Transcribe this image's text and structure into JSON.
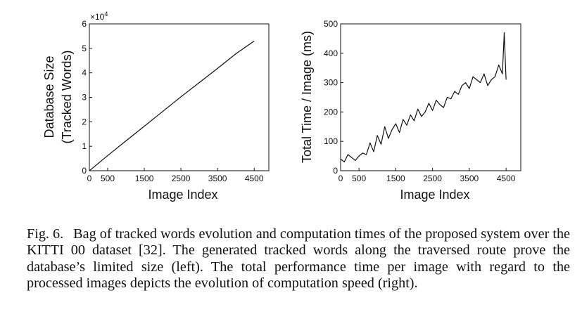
{
  "chart_data": [
    {
      "type": "line",
      "ylabel": "Database Size",
      "ylabel2": "(Tracked Words)",
      "xlabel": "Image Index",
      "xlim": [
        0,
        4900
      ],
      "ylim": [
        0,
        6
      ],
      "xticks": [
        0,
        500,
        1500,
        2500,
        3500,
        4500
      ],
      "yticks": [
        0,
        1,
        2,
        3,
        4,
        5,
        6
      ],
      "y_multiplier": "×10",
      "y_exponent": "4",
      "grid": false,
      "series": [
        {
          "x": [
            0,
            500,
            1000,
            1500,
            2000,
            2500,
            3000,
            3500,
            4000,
            4500
          ],
          "values": [
            0,
            0.62,
            1.22,
            1.82,
            2.42,
            3.02,
            3.6,
            4.18,
            4.78,
            5.3
          ]
        }
      ]
    },
    {
      "type": "line",
      "ylabel": "Total Time / Image (ms)",
      "xlabel": "Image Index",
      "xlim": [
        0,
        4900
      ],
      "ylim": [
        0,
        500
      ],
      "xticks": [
        0,
        500,
        1500,
        2500,
        3500,
        4500
      ],
      "yticks": [
        0,
        100,
        200,
        300,
        400,
        500
      ],
      "grid": false,
      "series": [
        {
          "x": [
            0,
            100,
            200,
            300,
            400,
            500,
            600,
            700,
            800,
            900,
            1000,
            1100,
            1200,
            1300,
            1400,
            1500,
            1600,
            1700,
            1800,
            1900,
            2000,
            2100,
            2200,
            2300,
            2400,
            2500,
            2600,
            2700,
            2800,
            2900,
            3000,
            3100,
            3200,
            3300,
            3400,
            3500,
            3600,
            3700,
            3800,
            3900,
            4000,
            4100,
            4200,
            4300,
            4400,
            4450,
            4500
          ],
          "values": [
            40,
            30,
            55,
            45,
            35,
            50,
            60,
            55,
            95,
            65,
            120,
            90,
            150,
            110,
            140,
            160,
            130,
            175,
            155,
            190,
            170,
            210,
            185,
            200,
            230,
            205,
            240,
            225,
            215,
            250,
            245,
            270,
            260,
            290,
            300,
            280,
            320,
            310,
            300,
            330,
            290,
            310,
            320,
            360,
            330,
            470,
            310
          ]
        }
      ]
    }
  ],
  "caption": {
    "label": "Fig. 6.",
    "text": "Bag of tracked words evolution and computation times of the proposed system over the KITTI 00 dataset [32]. The generated tracked words along the traversed route prove the database’s limited size (left). The total performance time per image with regard to the processed images depicts the evolution of computation speed (right)."
  }
}
